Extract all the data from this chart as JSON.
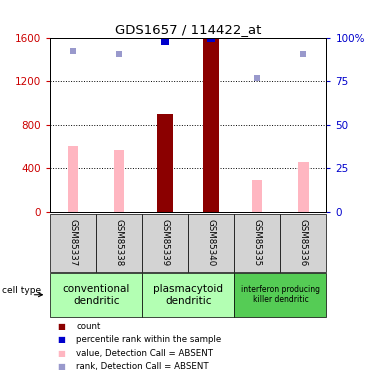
{
  "title": "GDS1657 / 114422_at",
  "samples": [
    "GSM85337",
    "GSM85338",
    "GSM85339",
    "GSM85340",
    "GSM85335",
    "GSM85336"
  ],
  "count_values": [
    0,
    0,
    900,
    1600,
    0,
    0
  ],
  "value_absent": [
    600,
    570,
    0,
    0,
    290,
    460
  ],
  "rank_absent_left": [
    1480,
    1450,
    1560,
    0,
    1230,
    1450
  ],
  "percentile_rank_left": [
    0,
    0,
    1570,
    1600,
    0,
    0
  ],
  "ylim_left": [
    0,
    1600
  ],
  "ylim_right": [
    0,
    100
  ],
  "yticks_left": [
    0,
    400,
    800,
    1200,
    1600
  ],
  "yticks_right": [
    0,
    25,
    50,
    75,
    100
  ],
  "count_color": "#8b0000",
  "value_absent_color": "#ffb6c1",
  "rank_absent_color": "#9999cc",
  "percentile_color": "#0000cc",
  "tick_color_left": "#cc0000",
  "tick_color_right": "#0000cc",
  "sample_box_color": "#d3d3d3",
  "group1_color": "#b3ffb3",
  "group2_color": "#55cc55",
  "bg_color": "#ffffff",
  "bar_width": 0.35,
  "absent_bar_width": 0.22,
  "legend": [
    {
      "color": "#8b0000",
      "marker": "s",
      "label": "count"
    },
    {
      "color": "#0000cc",
      "marker": "s",
      "label": "percentile rank within the sample"
    },
    {
      "color": "#ffb6c1",
      "marker": "s",
      "label": "value, Detection Call = ABSENT"
    },
    {
      "color": "#9999cc",
      "marker": "s",
      "label": "rank, Detection Call = ABSENT"
    }
  ]
}
